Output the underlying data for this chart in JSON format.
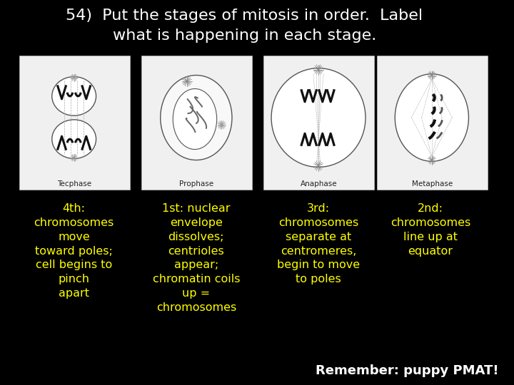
{
  "background_color": "#000000",
  "title_line1": "54)  Put the stages of mitosis in order.  Label",
  "title_line2": "what is happening in each stage.",
  "title_color": "#ffffff",
  "title_fontsize": 16,
  "image_labels": [
    "Tecphase",
    "Prophase",
    "Anaphase",
    "Metaphase"
  ],
  "text_color": "#ffff00",
  "label_fontsize": 11.5,
  "col1_label": "4",
  "col1_super": "th",
  "col1_label2": ":",
  "col1_body": "chromosomes\nmove\ntoward poles;\ncell begins to\npinch\napart",
  "col2_label": "1",
  "col2_super": "st",
  "col2_label2": ": nuclear",
  "col2_body": "envelope\ndissolves;\ncentrioles\nappear;\nchromatin coils\nup =\nchromosomes",
  "col3_label": "3",
  "col3_super": "rd",
  "col3_label2": ":",
  "col3_body": "chromosomes\nseparate at\ncentromeres,\nbegin to move\nto poles",
  "col4_label": "2",
  "col4_super": "nd",
  "col4_label2": ":",
  "col4_body": "chromosomes\nline up at\nequator",
  "remember_text": "Remember: puppy PMAT!",
  "remember_color": "#ffffff",
  "remember_fontsize": 13,
  "img_bg_color": "#f0f0f0",
  "img_border_color": "#cccccc",
  "cell_edge_color": "#555555",
  "chr_color": "#111111",
  "spindle_color": "#aaaaaa"
}
